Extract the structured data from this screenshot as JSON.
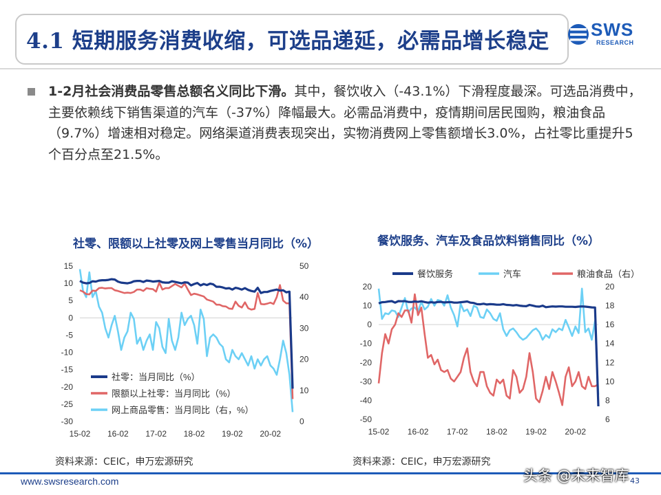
{
  "header": {
    "title": "4.1 短期服务消费收缩，可选品递延，必需品增长稳定",
    "logo_text": "SWS",
    "logo_sub": "RESEARCH"
  },
  "summary": {
    "bold": "1-2月社会消费品零售总额名义同比下滑。",
    "text": "其中，餐饮收入（-43.1%）下滑程度最深。可选品消费中，主要依赖线下销售渠道的汽车（-37%）降幅最大。必需品消费中，疫情期间居民囤购，粮油食品（9.7%）增速相对稳定。网络渠道消费表现突出，实物消费网上零售额增长3.0%，占社零比重提升5个百分点至21.5%。"
  },
  "colors": {
    "navy": "#1a3a8a",
    "red": "#e06666",
    "sky": "#6cd0f5",
    "title": "#1d3f8a"
  },
  "chart_data": [
    {
      "type": "line",
      "title": "社零、限额以上社零及网上零售当月同比（%）",
      "x_ticks": [
        "15-02",
        "16-02",
        "17-02",
        "18-02",
        "19-02",
        "20-02"
      ],
      "ylim_left": [
        -30,
        15
      ],
      "yticks_left": [
        15,
        10,
        5,
        0,
        -5,
        -10,
        -15,
        -20,
        -25,
        -30
      ],
      "ylim_right": [
        0,
        50
      ],
      "yticks_right": [
        50,
        40,
        30,
        20,
        10,
        0
      ],
      "series": [
        {
          "name": "社零：当月同比（%）",
          "axis": "left",
          "color": "#1a3a8a",
          "values": [
            10.7,
            10.2,
            10.0,
            10.1,
            10.6,
            10.5,
            10.8,
            10.9,
            10.9,
            11.0,
            11.2,
            11.1,
            10.5,
            10.2,
            10.1,
            10.0,
            10.2,
            10.6,
            10.7,
            10.7,
            10.4,
            10.8,
            10.7,
            10.5,
            10.6,
            10.7,
            10.3,
            10.2,
            10.2,
            10.6,
            10.4,
            10.2,
            10.0,
            10.3,
            10.2,
            9.4,
            9.8,
            10.1,
            9.4,
            9.8,
            9.5,
            9.9,
            9.7,
            9.0,
            9.0,
            8.8,
            8.5,
            8.6,
            8.2,
            8.7,
            8.5,
            8.2,
            8.6,
            8.1,
            7.8,
            7.6,
            8.7,
            7.2,
            7.5,
            7.5,
            7.8,
            8.0,
            8.2,
            7.9,
            8.0,
            7.4,
            7.6,
            -20.5
          ]
        },
        {
          "name": "限额以上社零：当月同比（%）",
          "axis": "left",
          "color": "#e06666",
          "values": [
            8.0,
            7.6,
            6.9,
            6.8,
            7.9,
            7.8,
            8.6,
            8.7,
            8.5,
            8.6,
            8.6,
            8.0,
            7.8,
            7.5,
            7.2,
            7.3,
            7.2,
            7.5,
            8.2,
            8.2,
            7.8,
            8.6,
            8.4,
            8.3,
            7.6,
            10.2,
            8.2,
            8.6,
            8.6,
            9.2,
            9.8,
            9.3,
            8.8,
            9.9,
            8.2,
            6.6,
            7.0,
            6.8,
            6.5,
            6.2,
            5.3,
            5.0,
            4.7,
            3.8,
            3.8,
            3.4,
            3.3,
            2.7,
            2.6,
            4.7,
            3.5,
            3.0,
            4.5,
            2.8,
            2.4,
            2.6,
            7.2,
            4.0,
            3.9,
            4.1,
            4.4,
            4.0,
            6.0,
            9.5,
            5.0,
            4.2,
            4.2,
            -23.5
          ]
        },
        {
          "name": "网上商品零售：当月同比（右，%）",
          "axis": "right",
          "color": "#6cd0f5",
          "values": [
            49.0,
            42.0,
            40.0,
            48.0,
            40.0,
            42.0,
            37.0,
            35.0,
            30.0,
            27.0,
            31.0,
            34.0,
            29.0,
            23.0,
            27.0,
            29.0,
            35.0,
            33.0,
            25.0,
            27.0,
            23.0,
            26.0,
            28.0,
            23.0,
            32.0,
            30.0,
            24.0,
            22.0,
            33.0,
            26.0,
            23.0,
            27.0,
            35.0,
            31.0,
            33.0,
            34.0,
            31.0,
            25.0,
            36.0,
            33.0,
            21.0,
            27.0,
            28.0,
            27.0,
            25.0,
            24.0,
            20.0,
            19.0,
            23.0,
            21.0,
            20.0,
            22.0,
            20.0,
            18.0,
            21.0,
            17.0,
            20.0,
            18.0,
            20.0,
            21.0,
            18.0,
            17.0,
            15.0,
            20.0,
            26.0,
            22.0,
            15.0,
            3.0
          ]
        }
      ]
    },
    {
      "type": "line",
      "title": "餐饮服务、汽车及食品饮料销售同比（%）",
      "x_ticks": [
        "15-02",
        "16-02",
        "17-02",
        "18-02",
        "19-02",
        "20-02"
      ],
      "ylim_left": [
        -50,
        20
      ],
      "yticks_left": [
        20,
        10,
        0,
        -10,
        -20,
        -30,
        -40,
        -50
      ],
      "ylim_right": [
        6,
        20
      ],
      "yticks_right": [
        20,
        18,
        16,
        14,
        12,
        10,
        8,
        6
      ],
      "series": [
        {
          "name": "餐饮服务",
          "axis": "left",
          "color": "#1a3a8a",
          "values": [
            11.2,
            11.8,
            11.9,
            12.2,
            12.4,
            11.6,
            12.4,
            12.3,
            12.4,
            12.0,
            11.9,
            12.2,
            12.0,
            12.3,
            11.9,
            11.6,
            11.8,
            11.6,
            11.9,
            12.0,
            11.7,
            11.8,
            11.9,
            11.6,
            11.6,
            11.8,
            12.0,
            12.2,
            11.6,
            11.4,
            10.8,
            10.7,
            11.0,
            10.6,
            10.8,
            10.7,
            10.5,
            10.5,
            10.8,
            10.4,
            10.3,
            10.1,
            10.3,
            10.0,
            9.8,
            9.7,
            10.4,
            10.0,
            9.6,
            9.5,
            10.0,
            9.2,
            9.4,
            9.6,
            9.5,
            9.6,
            9.6,
            9.4,
            9.4,
            9.4,
            9.3,
            9.5,
            9.6,
            9.5,
            9.3,
            9.1,
            9.0,
            -43.1
          ]
        },
        {
          "name": "汽车",
          "axis": "left",
          "color": "#6cd0f5",
          "values": [
            19.0,
            3.0,
            6.0,
            5.5,
            7.5,
            7.0,
            4.0,
            9.0,
            14.0,
            6.5,
            8.5,
            9.0,
            7.0,
            12.0,
            8.0,
            9.5,
            13.5,
            10.0,
            13.0,
            12.5,
            10.0,
            15.5,
            9.0,
            5.0,
            -1.0,
            11.0,
            7.0,
            8.0,
            4.5,
            10.0,
            9.0,
            4.0,
            3.5,
            8.0,
            6.0,
            3.0,
            2.0,
            6.0,
            -2.5,
            -6.0,
            -3.0,
            -2.0,
            -4.0,
            -6.5,
            -8.0,
            -7.0,
            -5.0,
            -3.0,
            -2.0,
            -4.0,
            -8.0,
            -5.5,
            -7.0,
            -2.5,
            -4.0,
            -2.0,
            -3.0,
            2.5,
            -1.5,
            -6.0,
            -1.0,
            -4.5,
            19.0,
            -4.0,
            -2.0,
            -8.0,
            2.0,
            -37.0
          ]
        },
        {
          "name": "粮油食品（右）",
          "axis": "right",
          "color": "#e06666",
          "values": [
            9.8,
            13.0,
            15.0,
            14.0,
            15.5,
            16.0,
            17.2,
            16.8,
            17.5,
            17.5,
            16.2,
            19.2,
            17.0,
            17.8,
            15.0,
            12.5,
            12.8,
            11.8,
            12.3,
            11.2,
            11.0,
            11.2,
            10.3,
            10.0,
            10.5,
            11.0,
            12.5,
            13.5,
            11.0,
            10.0,
            9.5,
            11.0,
            11.0,
            9.5,
            8.8,
            8.5,
            10.2,
            9.8,
            10.2,
            8.5,
            8.2,
            11.2,
            10.5,
            8.8,
            9.2,
            10.5,
            13.0,
            11.0,
            8.2,
            7.8,
            9.0,
            10.5,
            9.2,
            11.0,
            10.0,
            8.8,
            7.5,
            10.5,
            11.5,
            9.5,
            10.0,
            11.0,
            9.5,
            9.2,
            10.5,
            9.5,
            9.5,
            9.7
          ]
        }
      ]
    }
  ],
  "charts": {
    "left_title": "社零、限额以上社零及网上零售当月同比（%）",
    "right_title": "餐饮服务、汽车及食品饮料销售同比（%）",
    "left_source": "资料来源：CEIC，申万宏源研究",
    "right_source": "资料来源：CEIC，申万宏源研究"
  },
  "footer": {
    "url": "www.swsresearch.com",
    "page": "43",
    "watermark": "头条 @未来智库"
  }
}
